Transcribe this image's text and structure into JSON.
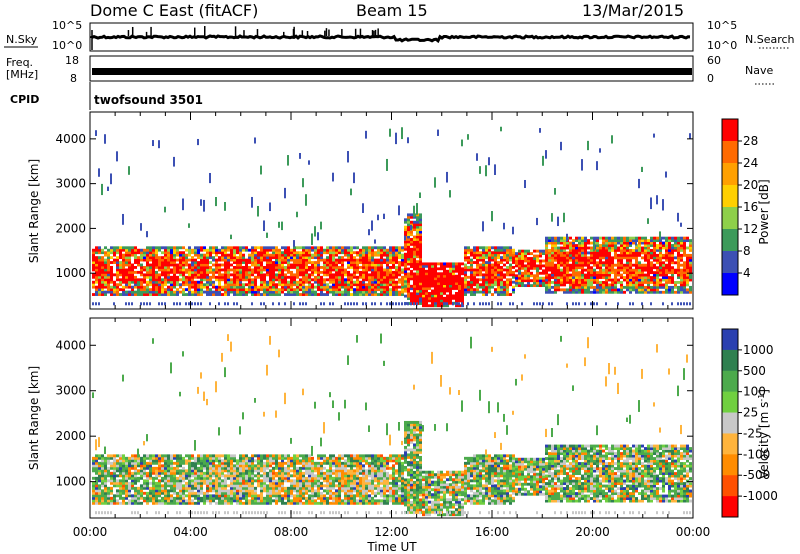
{
  "header": {
    "title": "Dome C East (fitACF)",
    "beam": "Beam 15",
    "date": "13/Mar/2015"
  },
  "top_panels": {
    "nsky_label": "N.Sky",
    "nsky_ticks": [
      "10^5",
      "10^0"
    ],
    "nsearch_label": "N.Search",
    "nsearch_ticks": [
      "10^5",
      "10^0"
    ],
    "freq_label": "Freq.",
    "freq_unit": "[MHz]",
    "freq_ticks": [
      "18",
      "8"
    ],
    "nave_label": "Nave",
    "nave_ticks": [
      "60",
      "0"
    ],
    "cpid_label": "CPID",
    "cpid_value": "twofsound 3501"
  },
  "chart_data": [
    {
      "type": "heatmap",
      "name": "power",
      "ylabel": "Slant Range [km]",
      "xlabel": "Time UT",
      "ylim": [
        200,
        4600
      ],
      "yticks": [
        "1000",
        "2000",
        "3000",
        "4000"
      ],
      "xticks": [
        "00:00",
        "04:00",
        "08:00",
        "12:00",
        "16:00",
        "20:00",
        "00:00"
      ],
      "colorbar": {
        "label": "Power [dB]",
        "ticks": [
          "28",
          "24",
          "20",
          "16",
          "12",
          "8",
          "4"
        ],
        "colors": [
          "#ff0000",
          "#ff6a00",
          "#ffa000",
          "#ffd000",
          "#8ed04a",
          "#3c9a5a",
          "#3c50b4",
          "#0000ff"
        ]
      }
    },
    {
      "type": "heatmap",
      "name": "velocity",
      "ylabel": "Slant Range [km]",
      "xlabel": "Time UT",
      "ylim": [
        200,
        4600
      ],
      "yticks": [
        "1000",
        "2000",
        "3000",
        "4000"
      ],
      "xticks": [
        "00:00",
        "04:00",
        "08:00",
        "12:00",
        "16:00",
        "20:00",
        "00:00"
      ],
      "colorbar": {
        "label": "Velocity [m s",
        "label_sup": "-1",
        "label_end": "]",
        "ticks": [
          "1000",
          "500",
          "100",
          "25",
          "-25",
          "-100",
          "-500",
          "-1000"
        ],
        "colors": [
          "#2a40b0",
          "#2f8050",
          "#4caa4c",
          "#70d040",
          "#c8c8c8",
          "#ffb43c",
          "#ff8c00",
          "#ff5000",
          "#ff0000"
        ]
      }
    }
  ]
}
